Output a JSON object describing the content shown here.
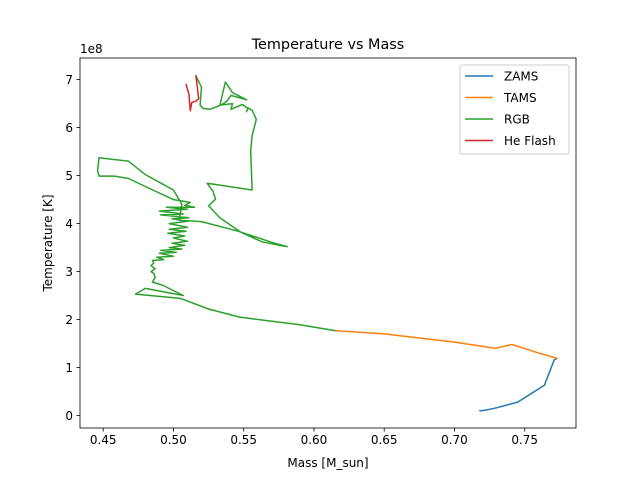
{
  "chart_data": {
    "type": "line",
    "title": "Temperature vs Mass",
    "xlabel": "Mass [M_sun]",
    "ylabel": "Temperature [K]",
    "y_multiplier_label": "1e8",
    "xlim": [
      0.4335,
      0.7865
    ],
    "ylim": [
      -0.26,
      7.45
    ],
    "x_ticks": [
      0.45,
      0.5,
      0.55,
      0.6,
      0.65,
      0.7,
      0.75
    ],
    "x_tick_labels": [
      "0.45",
      "0.50",
      "0.55",
      "0.60",
      "0.65",
      "0.70",
      "0.75"
    ],
    "y_ticks": [
      0,
      1,
      2,
      3,
      4,
      5,
      6,
      7
    ],
    "y_tick_labels": [
      "0",
      "1",
      "2",
      "3",
      "4",
      "5",
      "6",
      "7"
    ],
    "grid": false,
    "legend_position": "top-right",
    "series": [
      {
        "name": "ZAMS",
        "color": "#1f77b4",
        "points": [
          [
            0.718,
            0.1
          ],
          [
            0.722,
            0.11
          ],
          [
            0.73,
            0.16
          ],
          [
            0.745,
            0.28
          ],
          [
            0.764,
            0.63
          ],
          [
            0.771,
            1.16
          ],
          [
            0.773,
            1.19
          ]
        ]
      },
      {
        "name": "TAMS",
        "color": "#ff7f0e",
        "points": [
          [
            0.773,
            1.19
          ],
          [
            0.758,
            1.32
          ],
          [
            0.741,
            1.48
          ],
          [
            0.729,
            1.4
          ],
          [
            0.7,
            1.53
          ],
          [
            0.65,
            1.7
          ],
          [
            0.615,
            1.77
          ]
        ]
      },
      {
        "name": "RGB",
        "color": "#2ca02c",
        "points": [
          [
            0.615,
            1.77
          ],
          [
            0.59,
            1.89
          ],
          [
            0.547,
            2.05
          ],
          [
            0.525,
            2.22
          ],
          [
            0.505,
            2.44
          ],
          [
            0.473,
            2.53
          ],
          [
            0.48,
            2.65
          ],
          [
            0.507,
            2.5
          ],
          [
            0.492,
            2.72
          ],
          [
            0.485,
            2.78
          ],
          [
            0.487,
            2.88
          ],
          [
            0.486,
            2.96
          ],
          [
            0.484,
            3.0
          ],
          [
            0.487,
            3.06
          ],
          [
            0.484,
            3.12
          ],
          [
            0.486,
            3.18
          ],
          [
            0.485,
            3.23
          ],
          [
            0.493,
            3.25
          ],
          [
            0.488,
            3.3
          ],
          [
            0.5,
            3.32
          ],
          [
            0.49,
            3.38
          ],
          [
            0.502,
            3.4
          ],
          [
            0.491,
            3.44
          ],
          [
            0.506,
            3.47
          ],
          [
            0.497,
            3.5
          ],
          [
            0.508,
            3.55
          ],
          [
            0.499,
            3.59
          ],
          [
            0.51,
            3.63
          ],
          [
            0.5,
            3.7
          ],
          [
            0.508,
            3.74
          ],
          [
            0.496,
            3.8
          ],
          [
            0.509,
            3.84
          ],
          [
            0.497,
            3.88
          ],
          [
            0.51,
            3.92
          ],
          [
            0.497,
            4.0
          ],
          [
            0.51,
            4.05
          ],
          [
            0.499,
            4.1
          ],
          [
            0.511,
            4.12
          ],
          [
            0.491,
            4.18
          ],
          [
            0.507,
            4.2
          ],
          [
            0.49,
            4.26
          ],
          [
            0.51,
            4.3
          ],
          [
            0.495,
            4.34
          ],
          [
            0.515,
            4.34
          ],
          [
            0.508,
            4.38
          ],
          [
            0.512,
            4.44
          ],
          [
            0.5,
            4.5
          ],
          [
            0.483,
            4.73
          ],
          [
            0.468,
            4.94
          ],
          [
            0.458,
            4.99
          ],
          [
            0.447,
            4.99
          ],
          [
            0.446,
            5.11
          ],
          [
            0.447,
            5.37
          ],
          [
            0.468,
            5.3
          ],
          [
            0.48,
            5.02
          ],
          [
            0.49,
            4.86
          ],
          [
            0.5,
            4.7
          ],
          [
            0.506,
            4.4
          ],
          [
            0.504,
            4.07
          ],
          [
            0.52,
            4.04
          ],
          [
            0.546,
            3.84
          ],
          [
            0.571,
            3.6
          ],
          [
            0.581,
            3.52
          ],
          [
            0.575,
            3.55
          ],
          [
            0.563,
            3.62
          ],
          [
            0.548,
            3.82
          ],
          [
            0.533,
            4.12
          ],
          [
            0.525,
            4.37
          ],
          [
            0.53,
            4.51
          ],
          [
            0.528,
            4.68
          ],
          [
            0.524,
            4.84
          ],
          [
            0.556,
            4.7
          ],
          [
            0.555,
            5.52
          ],
          [
            0.556,
            5.83
          ],
          [
            0.559,
            6.17
          ],
          [
            0.556,
            6.36
          ],
          [
            0.553,
            6.41
          ],
          [
            0.552,
            6.33
          ],
          [
            0.553,
            6.4
          ],
          [
            0.549,
            6.48
          ],
          [
            0.541,
            6.38
          ],
          [
            0.542,
            6.5
          ],
          [
            0.534,
            6.47
          ],
          [
            0.538,
            6.55
          ],
          [
            0.541,
            6.67
          ],
          [
            0.552,
            6.58
          ],
          [
            0.542,
            6.73
          ],
          [
            0.537,
            6.95
          ],
          [
            0.533,
            6.46
          ],
          [
            0.526,
            6.38
          ],
          [
            0.521,
            6.4
          ],
          [
            0.519,
            6.47
          ],
          [
            0.52,
            6.84
          ],
          [
            0.516,
            7.08
          ]
        ]
      },
      {
        "name": "He Flash",
        "color": "#d62728",
        "points": [
          [
            0.516,
            7.08
          ],
          [
            0.518,
            6.6
          ],
          [
            0.516,
            6.55
          ],
          [
            0.513,
            6.52
          ],
          [
            0.512,
            6.35
          ],
          [
            0.511,
            6.7
          ],
          [
            0.509,
            6.9
          ]
        ]
      }
    ]
  }
}
